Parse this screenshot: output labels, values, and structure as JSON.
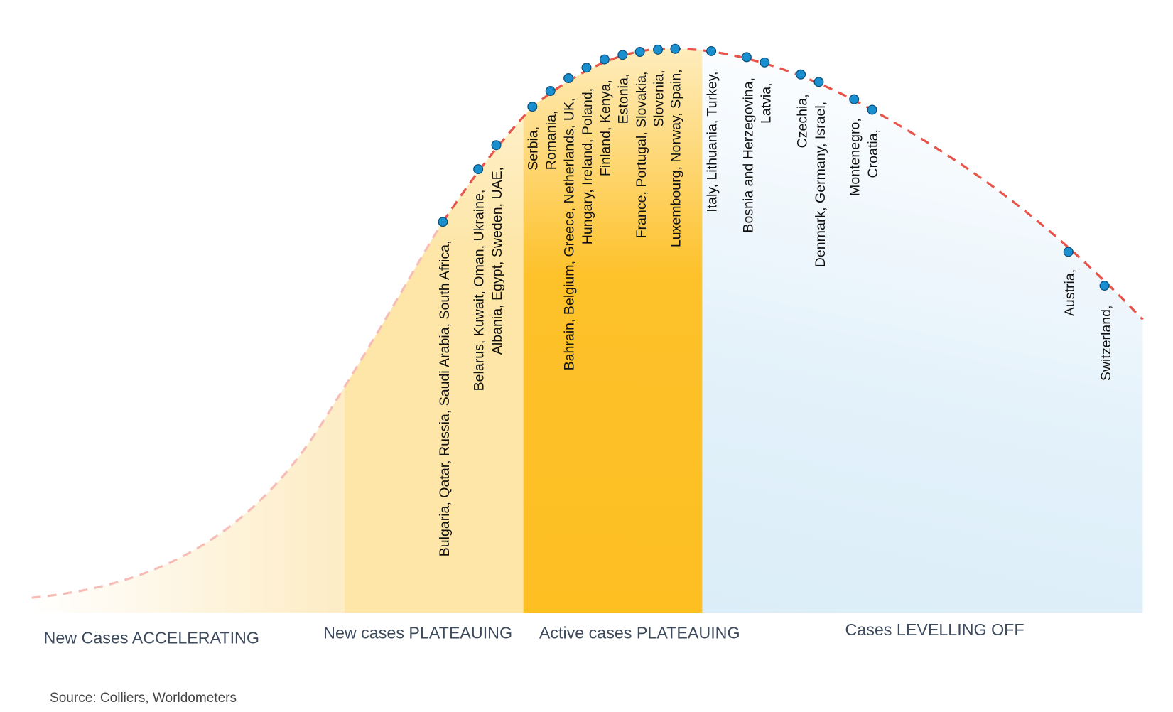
{
  "phases": [
    "New Cases ACCELERATING",
    "New cases PLATEAUING",
    "Active cases PLATEAUING",
    "Cases LEVELLING OFF"
  ],
  "countries": [
    "Bulgaria, Qatar, Russia, Saudi Arabia, South Africa,",
    "Belarus, Kuwait, Oman, Ukraine,",
    "Albania, Egypt, Sweden, UAE,",
    "Serbia,",
    "Romania,",
    "Bahrain, Belgium, Greece, Netherlands, UK,",
    "Hungary, Ireland, Poland,",
    "Finland, Kenya,",
    "Estonia,",
    "France, Portugal, Slovakia,",
    "Slovenia,",
    "Luxembourg, Norway, Spain,",
    "Italy, Lithuania, Turkey,",
    "Bosnia and Herzegovina,",
    "Latvia,",
    "Czechia,",
    "Denmark, Germany, Israel,",
    "Montenegro,",
    "Croatia,",
    "Austria,",
    "Switzerland,"
  ],
  "source": "Source: Colliers, Worldometers"
}
